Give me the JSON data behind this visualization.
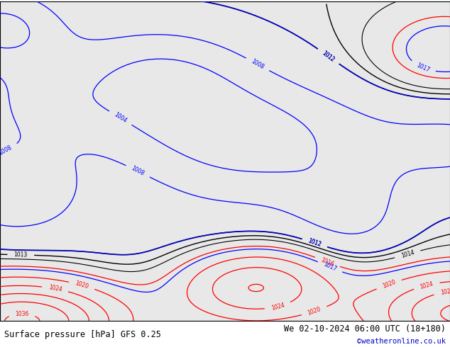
{
  "title_left": "Surface pressure [hPa] GFS 0.25",
  "title_right": "We 02-10-2024 06:00 UTC (18+180)",
  "credit": "©weatheronline.co.uk",
  "background_color": "#ffffff",
  "ocean_color": "#e8e8e8",
  "land_color": "#c8e6a0",
  "fig_width": 6.34,
  "fig_height": 4.9,
  "dpi": 100,
  "lon_min": -22,
  "lon_max": 56,
  "lat_min": -42,
  "lat_max": 42,
  "footer_fontsize": 8.5,
  "credit_fontsize": 7.5,
  "credit_color": "#0000cc"
}
